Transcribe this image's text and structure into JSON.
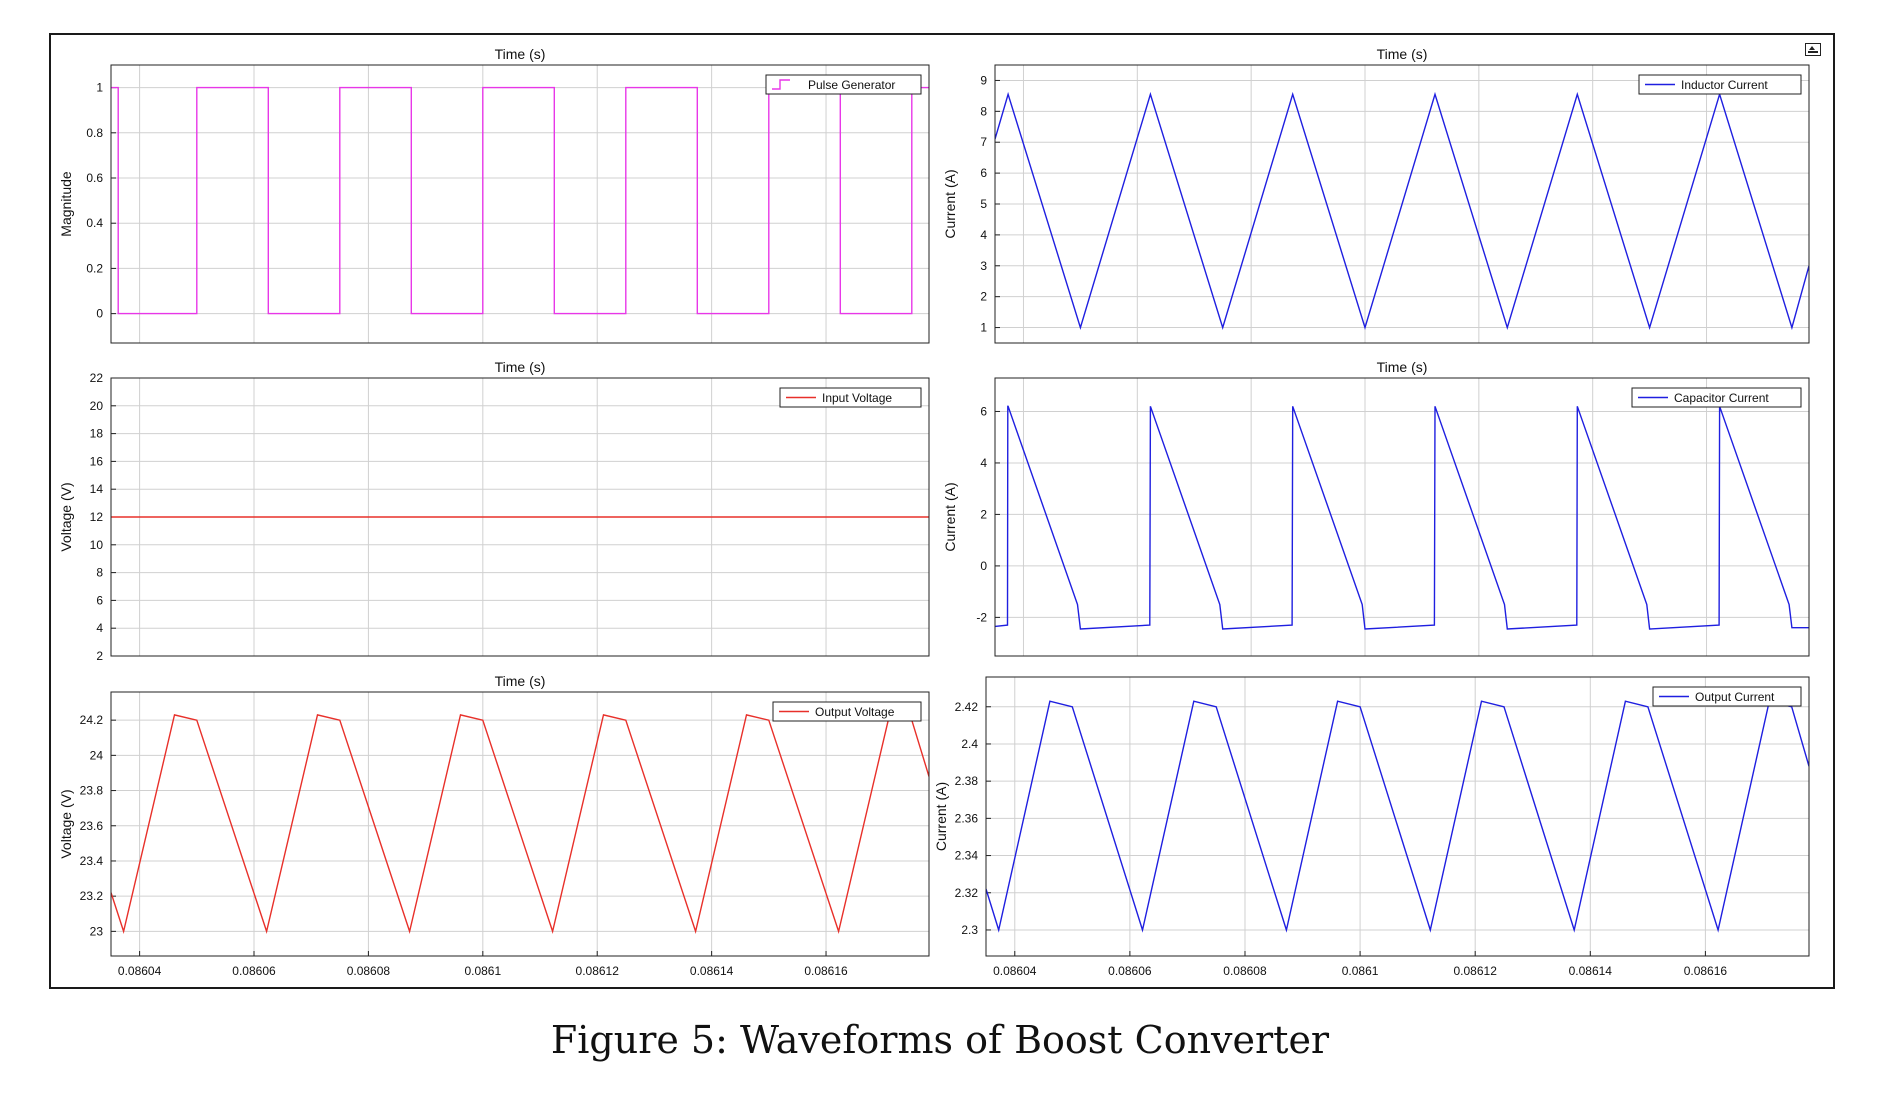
{
  "caption": "Figure 5: Waveforms of Boost Converter",
  "toolbar": {
    "expand_icon": "expand-panel-icon"
  },
  "chart_data": [
    {
      "type": "line",
      "title": "Time (s)",
      "ylabel": "Magnitude",
      "xlabel": "",
      "xlim": [
        0.086035,
        0.086178
      ],
      "ylim": [
        -0.13,
        1.1
      ],
      "yticks": [
        0,
        0.2,
        0.4,
        0.6,
        0.8,
        1
      ],
      "ytick_labels": [
        "0",
        "0.2",
        "0.4",
        "0.6",
        "0.8",
        "1"
      ],
      "xticks": [],
      "xtick_labels": [],
      "legend": "top-right",
      "grid": true,
      "color": "#e837e8",
      "series": [
        {
          "name": "Pulse Generator",
          "x": [
            0.086035,
            0.08603625,
            0.08603625,
            0.08605,
            0.08605,
            0.0860625,
            0.0860625,
            0.086075,
            0.086075,
            0.0860875,
            0.0860875,
            0.0861,
            0.0861,
            0.0861125,
            0.0861125,
            0.086125,
            0.086125,
            0.0861375,
            0.0861375,
            0.08615,
            0.08615,
            0.0861625,
            0.0861625,
            0.086175,
            0.086175,
            0.086178
          ],
          "y": [
            1,
            1,
            0,
            0,
            1,
            1,
            0,
            0,
            1,
            1,
            0,
            0,
            1,
            1,
            0,
            0,
            1,
            1,
            0,
            0,
            1,
            1,
            0,
            0,
            1,
            1
          ]
        }
      ]
    },
    {
      "type": "line",
      "title": "Time (s)",
      "ylabel": "Current (A)",
      "xlabel": "",
      "xlim": [
        0.086035,
        0.086178
      ],
      "ylim": [
        0.5,
        9.5
      ],
      "yticks": [
        1,
        2,
        3,
        4,
        5,
        6,
        7,
        8,
        9
      ],
      "ytick_labels": [
        "1",
        "2",
        "3",
        "4",
        "5",
        "6",
        "7",
        "8",
        "9"
      ],
      "xticks": [],
      "xtick_labels": [],
      "legend": "top-right",
      "grid": true,
      "color": "#1f1fe0",
      "series": [
        {
          "name": "Inductor Current",
          "x": [
            0.086035,
            0.0860373,
            0.08605,
            0.0860623,
            0.086075,
            0.0860873,
            0.0861,
            0.0861123,
            0.086125,
            0.0861373,
            0.08615,
            0.0861623,
            0.086175,
            0.086178
          ],
          "y": [
            7.1,
            8.55,
            1.0,
            8.55,
            1.0,
            8.55,
            1.0,
            8.55,
            1.0,
            8.55,
            1.0,
            8.55,
            1.0,
            3.0
          ]
        }
      ]
    },
    {
      "type": "line",
      "title": "Time (s)",
      "ylabel": "Voltage (V)",
      "xlabel": "",
      "xlim": [
        0.086035,
        0.086178
      ],
      "ylim": [
        2,
        22
      ],
      "yticks": [
        2,
        4,
        6,
        8,
        10,
        12,
        14,
        16,
        18,
        20,
        22
      ],
      "ytick_labels": [
        "2",
        "4",
        "6",
        "8",
        "10",
        "12",
        "14",
        "16",
        "18",
        "20",
        "22"
      ],
      "xticks": [],
      "xtick_labels": [],
      "legend": "top-right",
      "grid": true,
      "color": "#e8302a",
      "series": [
        {
          "name": "Input Voltage",
          "x": [
            0.086035,
            0.086178
          ],
          "y": [
            12,
            12
          ]
        }
      ]
    },
    {
      "type": "line",
      "title": "Time (s)",
      "ylabel": "Current (A)",
      "xlabel": "",
      "xlim": [
        0.086035,
        0.086178
      ],
      "ylim": [
        -3.5,
        7.3
      ],
      "yticks": [
        -2,
        0,
        2,
        4,
        6
      ],
      "ytick_labels": [
        "-2",
        "0",
        "2",
        "4",
        "6"
      ],
      "xticks": [],
      "xtick_labels": [],
      "legend": "top-right",
      "grid": true,
      "color": "#1f1fe0",
      "series": [
        {
          "name": "Capacitor Current",
          "x": [
            0.086035,
            0.0860372,
            0.0860372,
            0.08603725,
            0.0860373,
            0.0860495,
            0.08605,
            0.0860622,
            0.0860623,
            0.0860745,
            0.086075,
            0.0860872,
            0.0860873,
            0.0860995,
            0.0861,
            0.0861122,
            0.0861123,
            0.0861245,
            0.086125,
            0.0861372,
            0.0861373,
            0.0861495,
            0.08615,
            0.0861622,
            0.0861623,
            0.0861745,
            0.086175,
            0.086178
          ],
          "y": [
            -2.35,
            -2.3,
            -2.3,
            6.2,
            6.2,
            -1.5,
            -2.45,
            -2.3,
            6.2,
            -1.5,
            -2.45,
            -2.3,
            6.2,
            -1.5,
            -2.45,
            -2.3,
            6.2,
            -1.5,
            -2.45,
            -2.3,
            6.2,
            -1.5,
            -2.45,
            -2.3,
            6.2,
            -1.5,
            -2.4,
            -2.4
          ]
        }
      ]
    },
    {
      "type": "line",
      "title": "Time (s)",
      "ylabel": "Voltage (V)",
      "xlabel": "",
      "xlim": [
        0.086035,
        0.086178
      ],
      "ylim": [
        22.86,
        24.36
      ],
      "yticks": [
        23,
        23.2,
        23.4,
        23.6,
        23.8,
        24,
        24.2
      ],
      "ytick_labels": [
        "23",
        "23.2",
        "23.4",
        "23.6",
        "23.8",
        "24",
        "24.2"
      ],
      "xticks": [
        0.08604,
        0.08606,
        0.08608,
        0.0861,
        0.08612,
        0.08614,
        0.08616
      ],
      "xtick_labels": [
        "0.08604",
        "0.08606",
        "0.08608",
        "0.0861",
        "0.08612",
        "0.08614",
        "0.08616"
      ],
      "legend": "top-right",
      "grid": true,
      "color": "#e8302a",
      "series": [
        {
          "name": "Output Voltage",
          "x": [
            0.086035,
            0.0860372,
            0.0860461,
            0.08605,
            0.0860622,
            0.0860711,
            0.086075,
            0.0860872,
            0.0860961,
            0.0861,
            0.0861122,
            0.0861211,
            0.086125,
            0.0861372,
            0.0861461,
            0.08615,
            0.0861622,
            0.0861711,
            0.086175,
            0.086178
          ],
          "y": [
            23.22,
            23.0,
            24.23,
            24.2,
            23.0,
            24.23,
            24.2,
            23.0,
            24.23,
            24.2,
            23.0,
            24.23,
            24.2,
            23.0,
            24.23,
            24.2,
            23.0,
            24.23,
            24.2,
            23.88
          ]
        }
      ]
    },
    {
      "type": "line",
      "title": "",
      "ylabel": "Current (A)",
      "xlabel": "",
      "xlim": [
        0.086035,
        0.086178
      ],
      "ylim": [
        2.286,
        2.436
      ],
      "yticks": [
        2.3,
        2.32,
        2.34,
        2.36,
        2.38,
        2.4,
        2.42
      ],
      "ytick_labels": [
        "2.3",
        "2.32",
        "2.34",
        "2.36",
        "2.38",
        "2.4",
        "2.42"
      ],
      "xticks": [
        0.08604,
        0.08606,
        0.08608,
        0.0861,
        0.08612,
        0.08614,
        0.08616
      ],
      "xtick_labels": [
        "0.08604",
        "0.08606",
        "0.08608",
        "0.0861",
        "0.08612",
        "0.08614",
        "0.08616"
      ],
      "legend": "top-right",
      "grid": true,
      "color": "#1f1fe0",
      "series": [
        {
          "name": "Output Current",
          "x": [
            0.086035,
            0.0860372,
            0.0860461,
            0.08605,
            0.0860622,
            0.0860711,
            0.086075,
            0.0860872,
            0.0860961,
            0.0861,
            0.0861122,
            0.0861211,
            0.086125,
            0.0861372,
            0.0861461,
            0.08615,
            0.0861622,
            0.0861711,
            0.086175,
            0.086178
          ],
          "y": [
            2.322,
            2.3,
            2.423,
            2.42,
            2.3,
            2.423,
            2.42,
            2.3,
            2.423,
            2.42,
            2.3,
            2.423,
            2.42,
            2.3,
            2.423,
            2.42,
            2.3,
            2.423,
            2.42,
            2.388
          ]
        }
      ]
    }
  ]
}
